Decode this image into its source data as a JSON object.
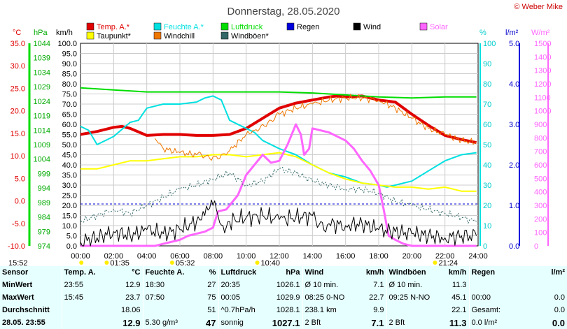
{
  "chart_data": {
    "type": "line",
    "title": "Donnerstag, 28.05.2020",
    "credit": "© Weber Mike",
    "legend": [
      {
        "name": "Temp. A.*",
        "color": "#e00000"
      },
      {
        "name": "Feuchte A.*",
        "color": "#00e0e0"
      },
      {
        "name": "Luftdruck",
        "color": "#00dd00"
      },
      {
        "name": "Regen",
        "color": "#0000dd"
      },
      {
        "name": "Wind",
        "color": "#000000"
      },
      {
        "name": "Solar",
        "color": "#ff66ff"
      },
      {
        "name": "Taupunkt*",
        "color": "#ffff00"
      },
      {
        "name": "Windchill",
        "color": "#ee7700"
      },
      {
        "name": "Windböen*",
        "color": "#336666"
      }
    ],
    "axis_units": {
      "temp": "°C",
      "pressure": "hPa",
      "wind": "km/h",
      "humidity": "%",
      "rain": "l/m²",
      "solar": "W/m²"
    },
    "x_ticks": [
      "00:00",
      "02:00",
      "04:00",
      "06:00",
      "08:00",
      "10:00",
      "12:00",
      "14:00",
      "16:00",
      "18:00",
      "20:00",
      "22:00",
      "24:00"
    ],
    "temp_ticks": [
      "35.0",
      "30.0",
      "25.0",
      "20.0",
      "15.0",
      "10.0",
      "5.0",
      "0.0",
      "-5.0",
      "-10.0"
    ],
    "pressure_ticks": [
      "1044",
      "1039",
      "1034",
      "1029",
      "1024",
      "1019",
      "1014",
      "1009",
      "1004",
      "999",
      "994",
      "989",
      "984",
      "979",
      "974"
    ],
    "wind_ticks": [
      "100.0",
      "95.0",
      "90.0",
      "85.0",
      "80.0",
      "75.0",
      "70.0",
      "65.0",
      "60.0",
      "55.0",
      "50.0",
      "45.0",
      "40.0",
      "35.0",
      "30.0",
      "25.0",
      "20.0",
      "15.0",
      "10.0",
      "5.0",
      "0.0"
    ],
    "hum_ticks": [
      "100",
      "90",
      "80",
      "70",
      "60",
      "50",
      "40",
      "30",
      "20",
      "10",
      "0"
    ],
    "rain_ticks": [
      "5.0",
      "4.0",
      "3.0",
      "2.0",
      "1.0",
      "0.0"
    ],
    "solar_ticks": [
      "1500",
      "1400",
      "1300",
      "1200",
      "1100",
      "1000",
      "900",
      "800",
      "700",
      "600",
      "500",
      "400",
      "300",
      "200",
      "100",
      "0"
    ],
    "ylim_wind": [
      0,
      100
    ],
    "grid": true,
    "series": [
      {
        "name": "Temp. A.*",
        "color": "#e00000",
        "width": 4,
        "x": [
          0,
          1,
          2,
          2.5,
          3,
          4,
          5,
          6,
          7,
          8,
          9,
          10,
          11,
          12,
          13,
          14,
          15,
          15.5,
          16,
          17,
          18,
          19,
          20,
          21,
          22,
          23,
          23.9
        ],
        "y": [
          55,
          56.5,
          58.5,
          59,
          58,
          54.5,
          55,
          55,
          54.5,
          54.5,
          55,
          58,
          63,
          68,
          70.5,
          72,
          73.5,
          74,
          73.5,
          74,
          72,
          71,
          65,
          59.5,
          54.5,
          52.5,
          51
        ]
      },
      {
        "name": "Feuchte A.*",
        "color": "#00e0e0",
        "width": 2,
        "x": [
          0,
          0.5,
          1,
          2,
          3,
          3.5,
          4,
          5,
          6,
          7,
          7.5,
          8,
          8.5,
          9,
          10,
          10.5,
          11,
          12,
          13,
          14,
          15,
          16,
          17,
          18,
          18.5,
          19,
          20,
          21,
          22,
          23,
          23.9
        ],
        "y": [
          59,
          57,
          50,
          54,
          61,
          62,
          68,
          70,
          70,
          71,
          73,
          74,
          72,
          62,
          58,
          56,
          52,
          48,
          45,
          40,
          36,
          34,
          31,
          30,
          29,
          30,
          32,
          37,
          42,
          45,
          46
        ]
      },
      {
        "name": "Taupunkt*",
        "color": "#ffff00",
        "width": 2,
        "x": [
          0,
          1,
          2,
          3,
          4,
          5,
          6,
          7,
          8,
          9,
          10,
          11,
          12,
          13,
          14,
          15,
          16,
          17,
          18,
          19,
          20,
          21,
          22,
          23,
          23.9
        ],
        "y": [
          38,
          38,
          40,
          42,
          42,
          43,
          44,
          44,
          45,
          45,
          44,
          45,
          46,
          44,
          40,
          36,
          33,
          31,
          30,
          29,
          29,
          28,
          29,
          27,
          27
        ]
      },
      {
        "name": "Luftdruck",
        "color": "#00dd00",
        "width": 2,
        "x": [
          0,
          2,
          4,
          6,
          8,
          10,
          12,
          14,
          16,
          18,
          20,
          22,
          23.9
        ],
        "y": [
          78,
          77,
          76,
          76,
          76,
          76,
          76,
          75.5,
          74.5,
          73.5,
          73,
          73.5,
          73.5
        ]
      },
      {
        "name": "Solar",
        "color": "#ff66ff",
        "width": 3,
        "x": [
          0,
          4.5,
          5,
          5.5,
          6,
          6.5,
          7,
          7.5,
          8,
          8.3,
          8.8,
          9.5,
          10,
          10.5,
          11,
          11.5,
          12,
          12.5,
          13,
          13.3,
          13.5,
          13.8,
          14,
          15,
          16,
          16.5,
          17,
          17.5,
          18,
          18.3,
          18.6,
          19,
          19.5,
          20,
          23.9
        ],
        "y": [
          0,
          0,
          1,
          2,
          3,
          5,
          6,
          7,
          9,
          17,
          18,
          25,
          35,
          40,
          45,
          41,
          42,
          50,
          60,
          55,
          45,
          48,
          58,
          56,
          52,
          48,
          42,
          37,
          30,
          18,
          5,
          3,
          1,
          0,
          0
        ]
      },
      {
        "name": "Windchill",
        "color": "#ee7700",
        "width": 1,
        "jag": 2,
        "x": [
          4.5,
          5,
          6,
          7,
          7.5,
          8,
          8.5,
          9,
          10,
          10.5,
          11,
          11.5,
          12,
          13,
          14,
          15,
          16,
          17,
          18,
          19,
          20,
          21,
          22,
          23,
          23.9
        ],
        "y": [
          53,
          48,
          46,
          45,
          44,
          44,
          45,
          47,
          55,
          57,
          60,
          62,
          65,
          68,
          70,
          72,
          73,
          73,
          72,
          68,
          63,
          58,
          55,
          52,
          51
        ]
      },
      {
        "name": "Windböen*",
        "color": "#336666",
        "width": 1,
        "dash": "2,2",
        "jag": 2,
        "x": [
          0,
          1,
          2,
          3,
          4,
          5,
          6,
          7,
          8,
          9,
          10,
          11,
          12,
          13,
          14,
          15,
          16,
          17,
          18,
          19,
          20,
          21,
          22,
          23,
          23.9
        ],
        "y": [
          12,
          15,
          18,
          16,
          20,
          24,
          28,
          30,
          33,
          36,
          30,
          32,
          38,
          36,
          32,
          30,
          28,
          28,
          26,
          22,
          20,
          18,
          16,
          14,
          12
        ]
      },
      {
        "name": "Wind",
        "color": "#000000",
        "width": 1,
        "jag": 5,
        "x": [
          0,
          1,
          2,
          3,
          4,
          5,
          6,
          7,
          7.5,
          8,
          8.3,
          8.6,
          9,
          10,
          11,
          12,
          13,
          14,
          14.5,
          15,
          16,
          17,
          18,
          19,
          20,
          21,
          22,
          23,
          23.9
        ],
        "y": [
          2,
          4,
          7,
          5,
          8,
          6,
          8,
          12,
          15,
          20,
          15,
          10,
          12,
          14,
          15,
          13,
          14,
          15,
          12,
          11,
          10,
          11,
          8,
          7,
          6,
          5,
          4,
          5,
          5
        ]
      }
    ]
  },
  "x_marks": [
    {
      "label": "15:52",
      "t": 0.05
    },
    {
      "label": "01:35",
      "t": 1.58
    },
    {
      "label": "05:32",
      "t": 5.53
    },
    {
      "label": "10:40",
      "t": 10.67
    },
    {
      "label": "21:24",
      "t": 21.4
    }
  ],
  "table": {
    "headers": [
      "Sensor",
      "Temp. A.",
      "°C",
      "Feuchte A.",
      "%",
      "Luftdruck",
      "hPa",
      "Wind",
      "km/h",
      "Windböen",
      "km/h",
      "Regen",
      "l/m²"
    ],
    "rows": [
      {
        "label": "MinWert",
        "t_time": "23:55",
        "t_val": "12.9",
        "h_time": "18:30",
        "h_val": "27",
        "p_time": "20:35",
        "p_val": "1026.1",
        "w_time": "Ø 10 min.",
        "w_val": "7.1",
        "g_time": "Ø 10 min.",
        "g_val": "11.3",
        "r_time": "",
        "r_val": ""
      },
      {
        "label": "MaxWert",
        "t_time": "15:45",
        "t_val": "23.7",
        "h_time": "07:50",
        "h_val": "75",
        "p_time": "00:05",
        "p_val": "1029.9",
        "w_time": "08:25",
        "w_mid": "0-NO",
        "w_val": "22.7",
        "g_time": "09:25",
        "g_mid": "N-NO",
        "g_val": "45.1",
        "r_time": "00:00",
        "r_val": "0.0"
      },
      {
        "label": "Durchschnitt",
        "t_time": "",
        "t_val": "18.06",
        "h_time": "",
        "h_val": "51",
        "p_time": "^0.7hPa/h",
        "p_val": "1028.1",
        "w_time": "238.1 km",
        "w_val": "9.9",
        "g_time": "",
        "g_val": "22.1",
        "r_time": "Gesamt:",
        "r_val": "0.0"
      },
      {
        "label": "28.05. 23:55",
        "t_time": "",
        "t_val": "12.9",
        "h_time": "5.30 g/m³",
        "h_val": "47",
        "p_time": "sonnig",
        "p_val": "1027.1",
        "w_time": "2 Bft",
        "w_val": "7.1",
        "g_time": "2 Bft",
        "g_val": "11.3",
        "r_time": "0.0 l/m²",
        "r_val": "0.0"
      }
    ]
  }
}
